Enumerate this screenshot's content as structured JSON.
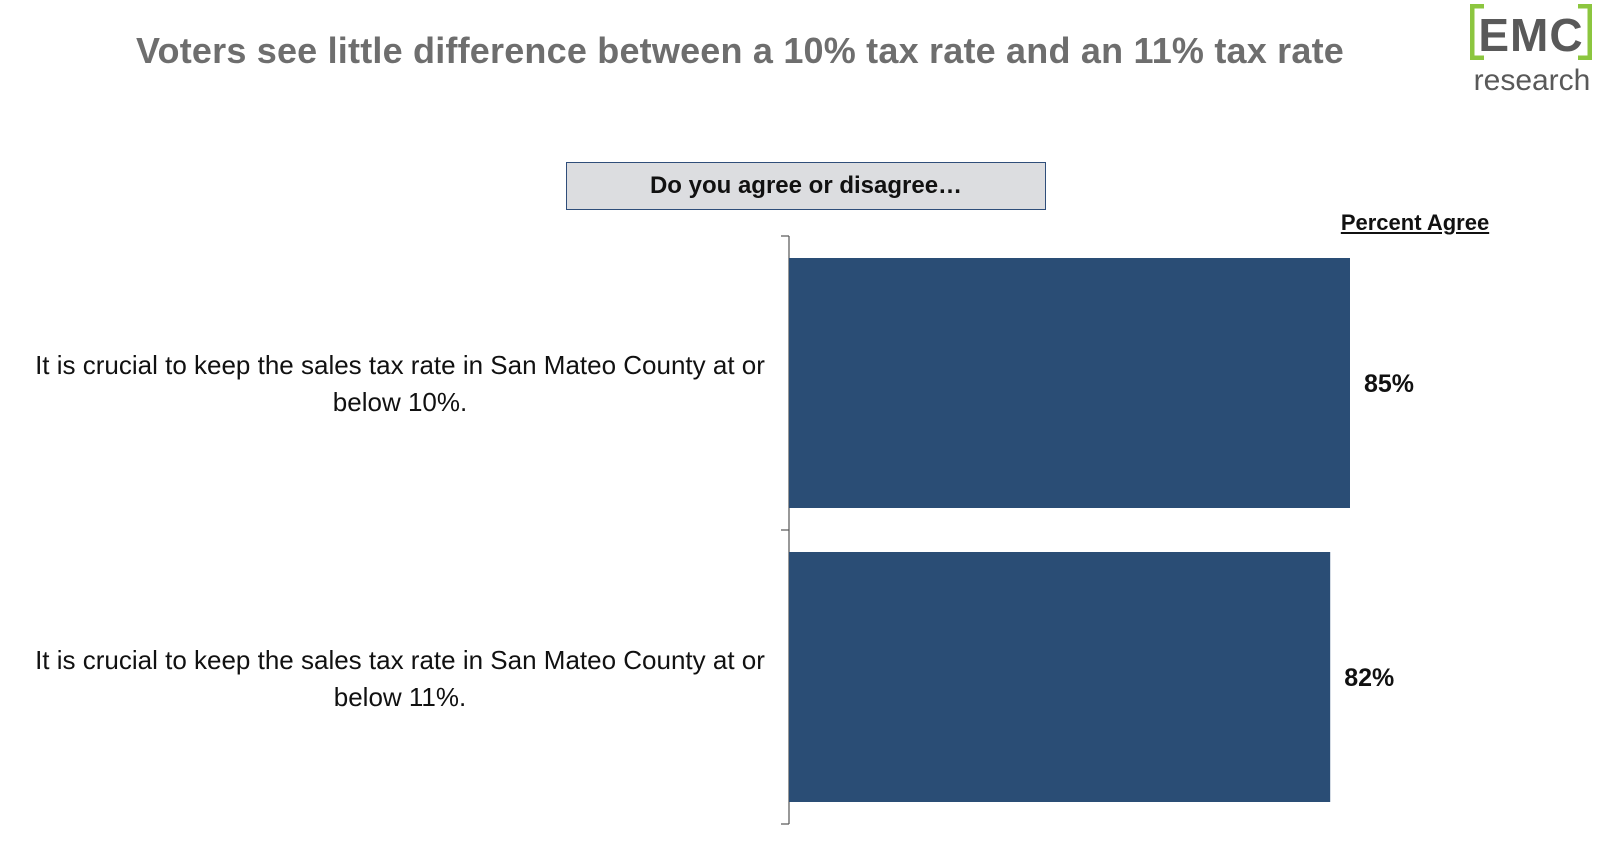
{
  "title": "Voters see little difference between a 10% tax rate and an 11% tax rate",
  "logo": {
    "top_text": "EMC",
    "bottom_text": "research",
    "accent_color": "#8cc63f",
    "text_color": "#595959"
  },
  "question": "Do you agree or disagree…",
  "colors": {
    "bar": "#2a4d75",
    "axis": "#555555"
  },
  "chart_data": {
    "type": "bar",
    "orientation": "horizontal",
    "title": "Voters see little difference between a 10% tax rate and an 11% tax rate",
    "value_header": "Percent Agree",
    "categories": [
      "It is crucial to keep the sales tax rate in San Mateo County at or below 10%.",
      "It is crucial to keep the sales tax rate in San Mateo County at or below 11%."
    ],
    "values": [
      85,
      82
    ],
    "value_labels": [
      "85%",
      "82%"
    ],
    "xlim": [
      0,
      100
    ],
    "grid": false,
    "legend": "none"
  }
}
